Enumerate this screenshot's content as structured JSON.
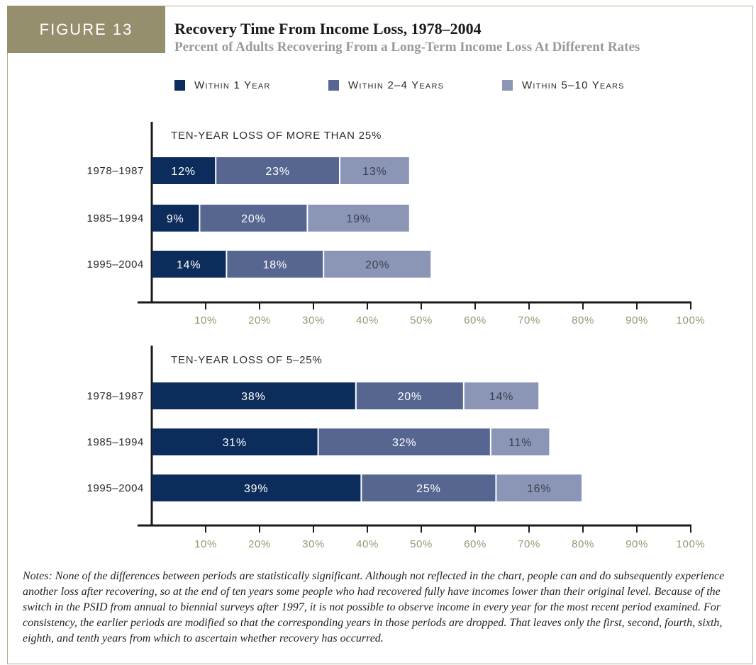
{
  "figure_label": "FIGURE 13",
  "title": "Recovery Time From Income Loss, 1978–2004",
  "subtitle": "Percent of Adults Recovering From a Long-Term Income Loss At Different Rates",
  "legend": [
    {
      "label": "Within 1 Year",
      "color": "#0c2d5c"
    },
    {
      "label": "Within 2–4 Years",
      "color": "#566690"
    },
    {
      "label": "Within 5–10 Years",
      "color": "#8b96b6"
    }
  ],
  "colors": {
    "axis": "#1a1a1a",
    "tick_label": "#9a9570",
    "row_label": "#2b2b2b",
    "bar_label_light": "#ffffff",
    "bar_label_dark": "#3a3f52"
  },
  "chart_data": [
    {
      "type": "bar",
      "orientation": "horizontal",
      "stacked": true,
      "title": "TEN-YEAR LOSS OF MORE THAN 25%",
      "categories": [
        "1978–1987",
        "1985–1994",
        "1995–2004"
      ],
      "series": [
        {
          "name": "Within 1 Year",
          "values": [
            12,
            9,
            14
          ],
          "labels": [
            "12%",
            "9%",
            "14%"
          ]
        },
        {
          "name": "Within 2–4 Years",
          "values": [
            23,
            20,
            18
          ],
          "labels": [
            "23%",
            "20%",
            "18%"
          ]
        },
        {
          "name": "Within 5–10 Years",
          "values": [
            13,
            19,
            20
          ],
          "labels": [
            "13%",
            "19%",
            "20%"
          ]
        }
      ],
      "xlim": [
        0,
        100
      ],
      "xticks": [
        10,
        20,
        30,
        40,
        50,
        60,
        70,
        80,
        90,
        100
      ],
      "xtick_labels": [
        "10%",
        "20%",
        "30%",
        "40%",
        "50%",
        "60%",
        "70%",
        "80%",
        "90%",
        "100%"
      ]
    },
    {
      "type": "bar",
      "orientation": "horizontal",
      "stacked": true,
      "title": "TEN-YEAR LOSS OF 5–25%",
      "categories": [
        "1978–1987",
        "1985–1994",
        "1995–2004"
      ],
      "series": [
        {
          "name": "Within 1 Year",
          "values": [
            38,
            31,
            39
          ],
          "labels": [
            "38%",
            "31%",
            "39%"
          ]
        },
        {
          "name": "Within 2–4 Years",
          "values": [
            20,
            32,
            25
          ],
          "labels": [
            "20%",
            "32%",
            "25%"
          ]
        },
        {
          "name": "Within 5–10 Years",
          "values": [
            14,
            11,
            16
          ],
          "labels": [
            "14%",
            "11%",
            "16%"
          ]
        }
      ],
      "xlim": [
        0,
        100
      ],
      "xticks": [
        10,
        20,
        30,
        40,
        50,
        60,
        70,
        80,
        90,
        100
      ],
      "xtick_labels": [
        "10%",
        "20%",
        "30%",
        "40%",
        "50%",
        "60%",
        "70%",
        "80%",
        "90%",
        "100%"
      ]
    }
  ],
  "notes": "Notes: None of the differences between periods are statistically significant. Although not reflected in the chart, people can and do subsequently experience another loss after recovering, so at the end of ten years some people who had recovered fully have incomes lower than their original level. Because of the switch in the PSID from annual to biennial surveys after 1997, it is not possible to observe income in every year for the most recent period examined. For consistency, the earlier periods are modified so that the corresponding years in those periods are dropped. That leaves only the first, second, fourth, sixth, eighth, and tenth years from which to ascertain whether recovery has occurred."
}
